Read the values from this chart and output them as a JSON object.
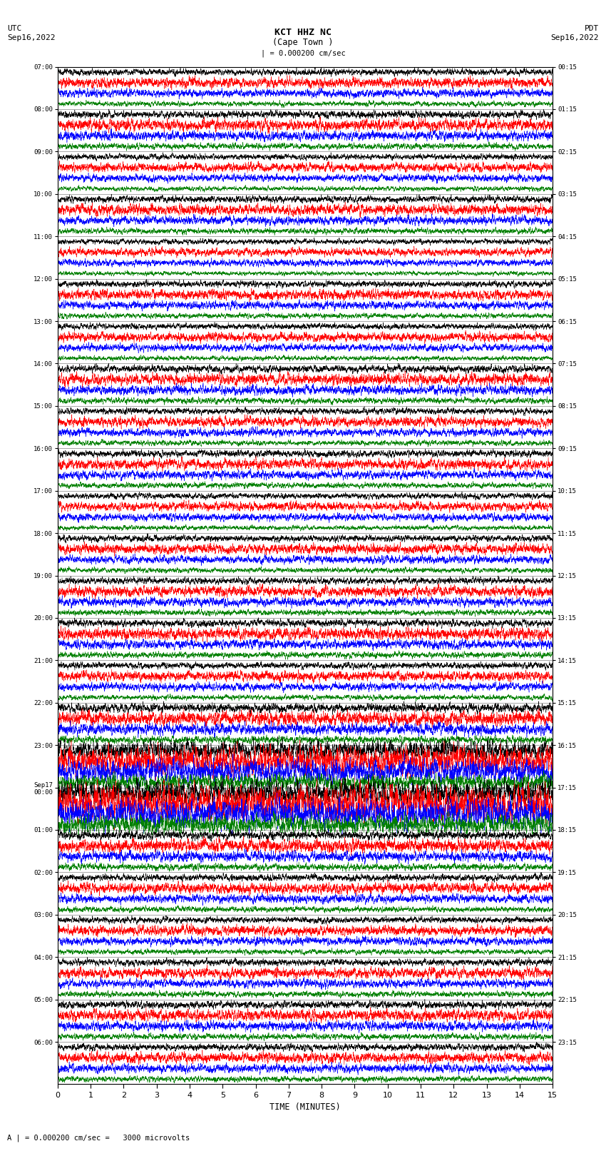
{
  "title_line1": "KCT HHZ NC",
  "title_line2": "(Cape Town )",
  "scale_label": "| = 0.000200 cm/sec",
  "left_date": "UTC\nSep16,2022",
  "right_date": "PDT\nSep16,2022",
  "bottom_label": "TIME (MINUTES)",
  "bottom_note": "A | = 0.000200 cm/sec =   3000 microvolts",
  "xlabel_ticks": [
    0,
    1,
    2,
    3,
    4,
    5,
    6,
    7,
    8,
    9,
    10,
    11,
    12,
    13,
    14,
    15
  ],
  "utc_times_left": [
    "07:00",
    "08:00",
    "09:00",
    "10:00",
    "11:00",
    "12:00",
    "13:00",
    "14:00",
    "15:00",
    "16:00",
    "17:00",
    "18:00",
    "19:00",
    "20:00",
    "21:00",
    "22:00",
    "23:00",
    "Sep17\n00:00",
    "01:00",
    "02:00",
    "03:00",
    "04:00",
    "05:00",
    "06:00"
  ],
  "pdt_times_right": [
    "00:15",
    "01:15",
    "02:15",
    "03:15",
    "04:15",
    "05:15",
    "06:15",
    "07:15",
    "08:15",
    "09:15",
    "10:15",
    "11:15",
    "12:15",
    "13:15",
    "14:15",
    "15:15",
    "16:15",
    "17:15",
    "18:15",
    "19:15",
    "20:15",
    "21:15",
    "22:15",
    "23:15"
  ],
  "n_rows": 24,
  "traces_per_row": 4,
  "colors": [
    "black",
    "red",
    "blue",
    "green"
  ],
  "bg_color": "white",
  "plot_bg": "white",
  "line_width": 0.35,
  "noise_seed": 42,
  "n_samples": 6000,
  "amplitude_scale": [
    0.55,
    0.85,
    0.7,
    0.45
  ],
  "row_amplitude_multipliers": [
    0.6,
    0.7,
    0.55,
    0.65,
    0.5,
    0.6,
    0.55,
    0.7,
    0.6,
    0.65,
    0.55,
    0.6,
    0.65,
    0.7,
    0.6,
    0.85,
    1.8,
    2.2,
    0.8,
    0.65,
    0.6,
    0.65,
    0.7,
    0.65
  ]
}
